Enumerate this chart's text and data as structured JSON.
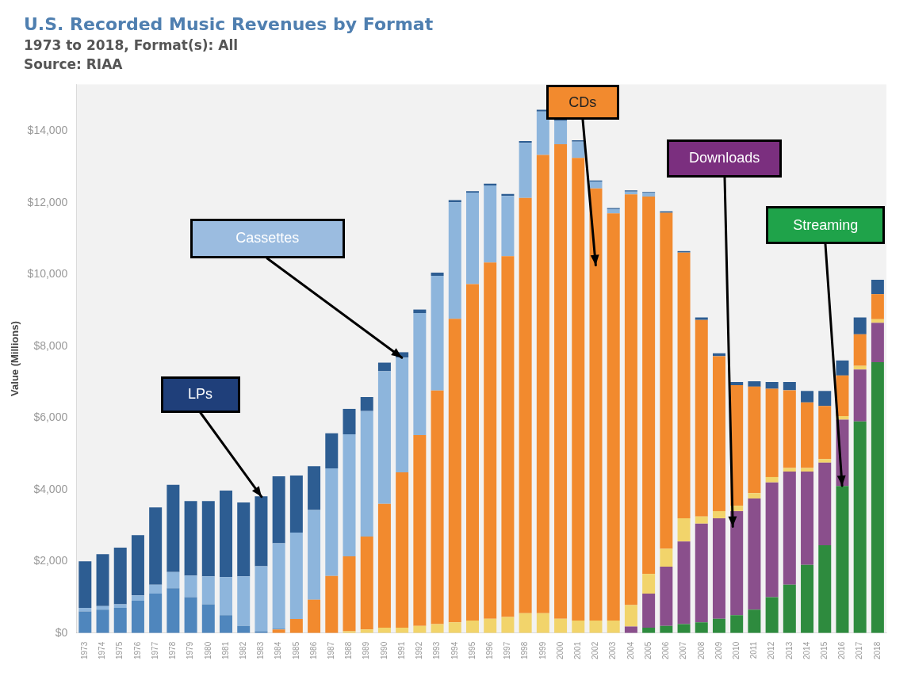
{
  "chart_data": {
    "type": "bar",
    "title": "U.S. Recorded Music Revenues by Format",
    "subtitle": "1973 to 2018, Format(s): All",
    "ylabel": "Value (Millions)",
    "stacked": true,
    "legend": false,
    "grid": false,
    "categories": [
      "1973",
      "1974",
      "1975",
      "1976",
      "1977",
      "1978",
      "1979",
      "1980",
      "1981",
      "1982",
      "1983",
      "1984",
      "1985",
      "1986",
      "1987",
      "1988",
      "1989",
      "1990",
      "1991",
      "1992",
      "1993",
      "1994",
      "1995",
      "1996",
      "1997",
      "1998",
      "1999",
      "2000",
      "2001",
      "2002",
      "2003",
      "2004",
      "2005",
      "2006",
      "2007",
      "2008",
      "2009",
      "2010",
      "2011",
      "2012",
      "2013",
      "2014",
      "2015",
      "2016",
      "2017",
      "2018"
    ],
    "ylim": [
      0,
      15300
    ],
    "yticks": [
      {
        "value": 0,
        "label": "$0"
      },
      {
        "value": 2000,
        "label": "$2,000"
      },
      {
        "value": 4000,
        "label": "$4,000"
      },
      {
        "value": 6000,
        "label": "$6,000"
      },
      {
        "value": 8000,
        "label": "$8,000"
      },
      {
        "value": 10000,
        "label": "$10,000"
      },
      {
        "value": 12000,
        "label": "$12,000"
      },
      {
        "value": 14000,
        "label": "$14,000"
      }
    ],
    "series": [
      {
        "color": "#2e8b3e",
        "values": [
          0,
          0,
          0,
          0,
          0,
          0,
          0,
          0,
          0,
          0,
          0,
          0,
          0,
          0,
          0,
          0,
          0,
          0,
          0,
          0,
          0,
          0,
          0,
          0,
          0,
          0,
          0,
          0,
          0,
          0,
          0,
          0,
          150,
          200,
          250,
          300,
          400,
          500,
          650,
          1000,
          1350,
          1900,
          2450,
          4100,
          5900,
          7550
        ]
      },
      {
        "color": "#8a4f8c",
        "values": [
          0,
          0,
          0,
          0,
          0,
          0,
          0,
          0,
          0,
          0,
          0,
          0,
          0,
          0,
          0,
          0,
          0,
          0,
          0,
          0,
          0,
          0,
          0,
          0,
          0,
          0,
          0,
          0,
          0,
          0,
          0,
          180,
          950,
          1650,
          2300,
          2750,
          2800,
          2900,
          3100,
          3200,
          3150,
          2600,
          2300,
          1850,
          1450,
          1100
        ]
      },
      {
        "color": "#f2d46b",
        "values": [
          0,
          0,
          0,
          0,
          0,
          0,
          0,
          0,
          0,
          0,
          0,
          0,
          0,
          0,
          0,
          50,
          100,
          150,
          150,
          200,
          250,
          300,
          350,
          400,
          450,
          550,
          550,
          400,
          350,
          350,
          350,
          600,
          550,
          500,
          650,
          200,
          200,
          150,
          150,
          150,
          100,
          100,
          100,
          100,
          100,
          100
        ]
      },
      {
        "color": "#f28a2e",
        "values": [
          0,
          0,
          0,
          0,
          0,
          0,
          0,
          0,
          0,
          0,
          0,
          100,
          390,
          930,
          1590,
          2090,
          2590,
          3450,
          4330,
          5320,
          6510,
          8460,
          9380,
          9930,
          10060,
          11580,
          12780,
          13230,
          12900,
          12050,
          11350,
          11450,
          10520,
          9370,
          7410,
          5480,
          4320,
          3360,
          2970,
          2460,
          2170,
          1830,
          1480,
          1130,
          880,
          700
        ]
      },
      {
        "color": "#4f86bd",
        "values": [
          600,
          650,
          700,
          900,
          1100,
          1250,
          1000,
          800,
          500,
          200,
          50,
          20,
          0,
          0,
          0,
          0,
          0,
          0,
          0,
          0,
          0,
          0,
          0,
          0,
          0,
          0,
          0,
          0,
          0,
          0,
          0,
          0,
          0,
          0,
          0,
          0,
          0,
          0,
          0,
          0,
          0,
          0,
          0,
          0,
          0,
          0
        ]
      },
      {
        "color": "#8db5dc",
        "values": [
          100,
          100,
          100,
          150,
          250,
          450,
          600,
          780,
          1060,
          1380,
          1810,
          2380,
          2410,
          2500,
          3000,
          3400,
          3500,
          3700,
          3200,
          3400,
          3200,
          3250,
          2550,
          2150,
          1680,
          1540,
          1210,
          650,
          450,
          190,
          120,
          80,
          100,
          0,
          0,
          0,
          0,
          0,
          0,
          0,
          0,
          0,
          0,
          0,
          0,
          0
        ]
      },
      {
        "color": "#2d5d92",
        "values": [
          1300,
          1450,
          1580,
          1680,
          2150,
          2430,
          2080,
          2100,
          2410,
          2060,
          1950,
          1870,
          1590,
          1220,
          980,
          710,
          390,
          240,
          150,
          100,
          90,
          60,
          40,
          50,
          50,
          50,
          50,
          40,
          40,
          30,
          30,
          30,
          30,
          40,
          40,
          70,
          80,
          90,
          150,
          190,
          230,
          320,
          420,
          420,
          470,
          400
        ]
      }
    ],
    "annotations": [
      "Source: RIAA",
      {
        "text": "LPs",
        "x": "1983",
        "y": 3810
      },
      {
        "text": "Cassettes",
        "x": "1991",
        "y": 7680
      },
      "CDs",
      "Downloads",
      {
        "text": "Streaming",
        "x": "2016",
        "y": 4100
      }
    ]
  }
}
